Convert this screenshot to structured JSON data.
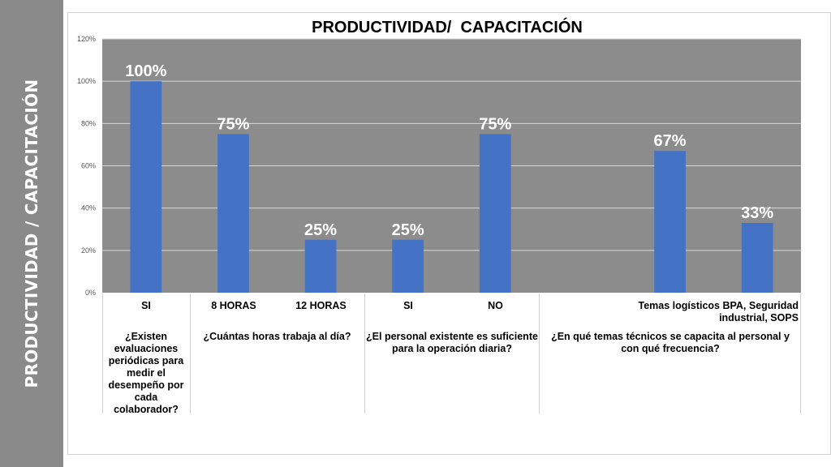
{
  "sidebar": {
    "title": "PRODUCTIVIDAD / CAPACITACIÓN"
  },
  "colors": {
    "plot_bg": "#8c8c8c",
    "bar": "#4472c4",
    "gridline": "#d9d9d9",
    "sidebar": "#8a8a8a"
  },
  "chart_data": {
    "type": "bar",
    "title": "PRODUCTIVIDAD/  CAPACITACIÓN",
    "xlabel": "",
    "ylabel": "",
    "ylim": [
      0,
      120
    ],
    "y_ticks": [
      "0%",
      "20%",
      "40%",
      "60%",
      "80%",
      "100%",
      "120%"
    ],
    "grid": true,
    "categories": [
      "SI",
      "8 HORAS",
      "12 HORAS",
      "SI",
      "NO",
      "",
      "Temas logísticos",
      "BPA, Seguridad industrial, SOPS"
    ],
    "values": [
      100,
      75,
      25,
      25,
      75,
      null,
      67,
      33
    ],
    "data_labels": [
      "100%",
      "75%",
      "25%",
      "25%",
      "75%",
      "",
      "67%",
      "33%"
    ],
    "category_axis_labels": [
      "SI",
      "8 HORAS",
      "12 HORAS",
      "SI",
      "NO",
      "Temas logísticos  BPA, Seguridad industrial, SOPS"
    ],
    "groups": [
      "¿Existen evaluaciones periódicas para medir el desempeño por cada colaborador?",
      "¿Cuántas horas trabaja al día?",
      "¿El personal existente es suficiente para la operación diaria?",
      "¿En qué temas técnicos se capacita al personal y con qué frecuencia?"
    ]
  }
}
